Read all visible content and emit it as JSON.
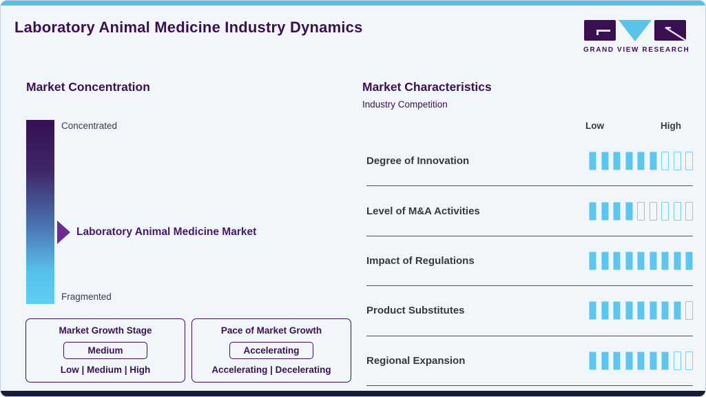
{
  "page": {
    "title": "Laboratory Animal Medicine Industry Dynamics"
  },
  "logo": {
    "text": "GRAND VIEW RESEARCH"
  },
  "colors": {
    "brand_purple": "#3b1053",
    "accent_cyan": "#56c1e8",
    "arrow_purple": "#6a2c90",
    "bottom_bar_navy": "#171b39",
    "segment_filled": "#5bc7ee",
    "label_gray": "#38383c",
    "background": "#f1f6fa"
  },
  "market_concentration": {
    "heading": "Market Concentration",
    "scale_top": "Concentrated",
    "scale_bottom": "Fragmented",
    "pointer_label": "Laboratory Animal Medicine Market",
    "growth_stage": {
      "title": "Market Growth Stage",
      "value": "Medium",
      "options": "Low | Medium | High"
    },
    "pace_of_growth": {
      "title": "Pace of Market Growth",
      "value": "Accelerating",
      "options": "Accelerating | Decelerating"
    }
  },
  "market_characteristics": {
    "heading": "Market Characteristics",
    "subheading": "Industry Competition",
    "scale_low": "Low",
    "scale_high": "High",
    "total_segments": 9,
    "rows": [
      {
        "label": "Degree of Innovation",
        "filled": 6
      },
      {
        "label": "Level of M&A Activities",
        "filled": 4
      },
      {
        "label": "Impact of Regulations",
        "filled": 9
      },
      {
        "label": "Product Substitutes",
        "filled": 8
      },
      {
        "label": "Regional Expansion",
        "filled": 7
      }
    ]
  },
  "chart_data": {
    "type": "bar",
    "title": "Market Characteristics — Industry Competition",
    "categories": [
      "Degree of Innovation",
      "Level of M&A Activities",
      "Impact of Regulations",
      "Product Substitutes",
      "Regional Expansion"
    ],
    "values": [
      6,
      4,
      9,
      8,
      7
    ],
    "value_max": 9,
    "scale_labels": [
      "Low",
      "High"
    ],
    "orientation": "horizontal-rating",
    "annotations": {
      "concentration_scale": [
        "Concentrated",
        "Fragmented"
      ],
      "concentration_pointer": "Laboratory Animal Medicine Market",
      "market_growth_stage": "Medium",
      "pace_of_market_growth": "Accelerating"
    }
  }
}
